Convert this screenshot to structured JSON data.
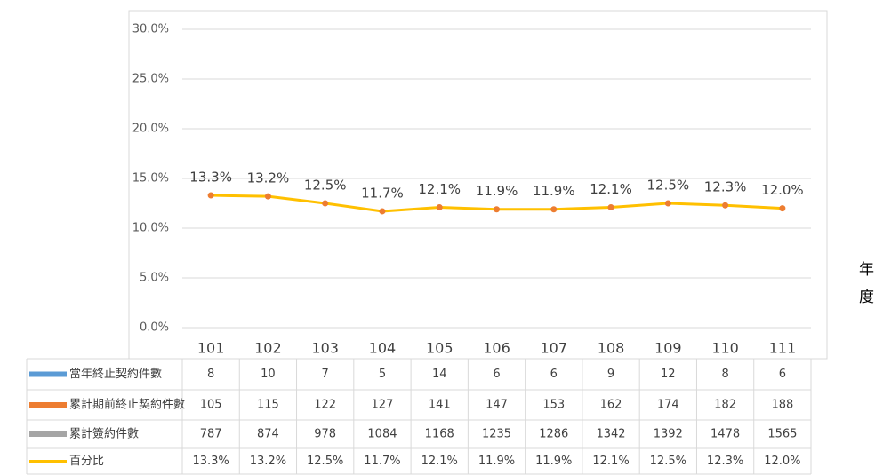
{
  "chart_data": {
    "type": "line",
    "categories": [
      "101",
      "102",
      "103",
      "104",
      "105",
      "106",
      "107",
      "108",
      "109",
      "110",
      "111"
    ],
    "series": [
      {
        "name": "當年終止契約件數",
        "color": "#5b9bd5",
        "values": [
          8,
          10,
          7,
          5,
          14,
          6,
          6,
          9,
          12,
          8,
          6
        ]
      },
      {
        "name": "累計期前終止契約件數",
        "color": "#ed7d31",
        "values": [
          105,
          115,
          122,
          127,
          141,
          147,
          153,
          162,
          174,
          182,
          188
        ]
      },
      {
        "name": "累計簽約件數",
        "color": "#a5a5a5",
        "values": [
          787,
          874,
          978,
          1084,
          1168,
          1235,
          1286,
          1342,
          1392,
          1478,
          1565
        ]
      },
      {
        "name": "百分比",
        "color": "#ffc000",
        "marker_color": "#ed7d31",
        "plotted": true,
        "values": [
          13.3,
          13.2,
          12.5,
          11.7,
          12.1,
          11.9,
          11.9,
          12.1,
          12.5,
          12.3,
          12.0
        ],
        "value_labels": [
          "13.3%",
          "13.2%",
          "12.5%",
          "11.7%",
          "12.1%",
          "11.9%",
          "11.9%",
          "12.1%",
          "12.5%",
          "12.3%",
          "12.0%"
        ]
      }
    ],
    "ylim": [
      0,
      30
    ],
    "yticks": [
      {
        "value": 0,
        "label": "0.0%"
      },
      {
        "value": 5,
        "label": "5.0%"
      },
      {
        "value": 10,
        "label": "10.0%"
      },
      {
        "value": 15,
        "label": "15.0%"
      },
      {
        "value": 20,
        "label": "20.0%"
      },
      {
        "value": 25,
        "label": "25.0%"
      },
      {
        "value": 30,
        "label": "30.0%"
      }
    ],
    "grid": true,
    "x_label": "年度"
  }
}
